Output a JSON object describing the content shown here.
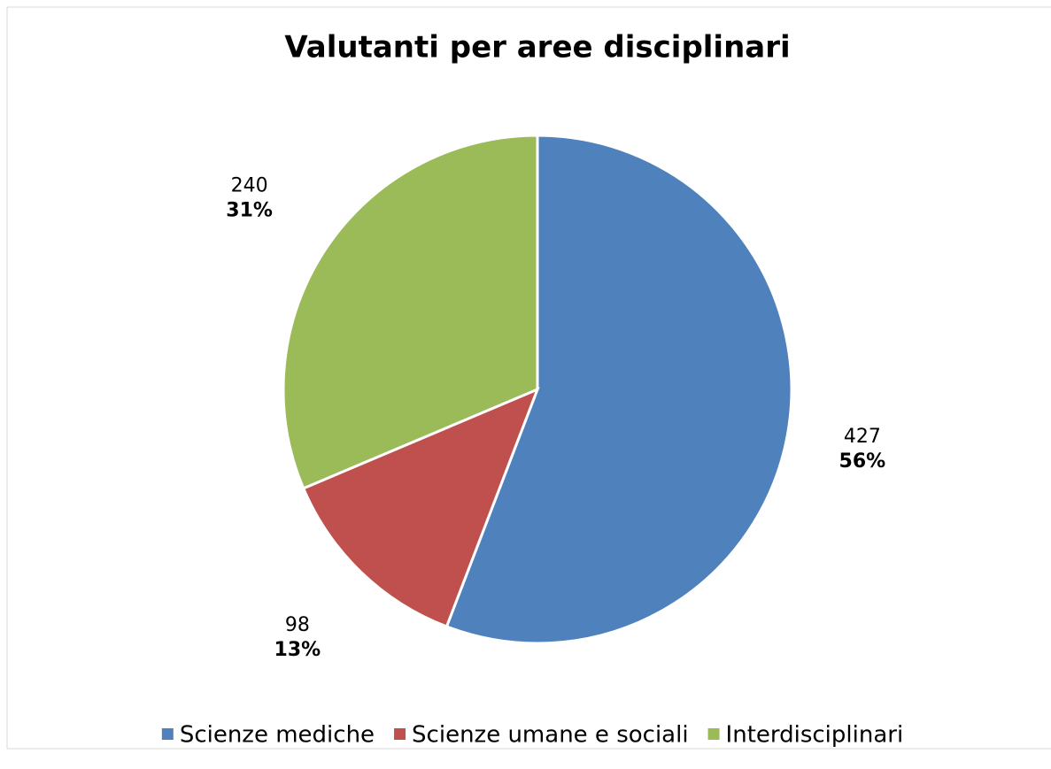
{
  "chart_data": {
    "type": "pie",
    "title": "Valutanti per aree disciplinari",
    "categories": [
      "Scienze mediche",
      "Scienze umane e sociali",
      "Interdisciplinari"
    ],
    "values": [
      427,
      98,
      240
    ],
    "percent_labels": [
      "56%",
      "13%",
      "31%"
    ],
    "colors": [
      "#4f81bd",
      "#c0504d",
      "#9bbb59"
    ],
    "legend": "bottom"
  }
}
